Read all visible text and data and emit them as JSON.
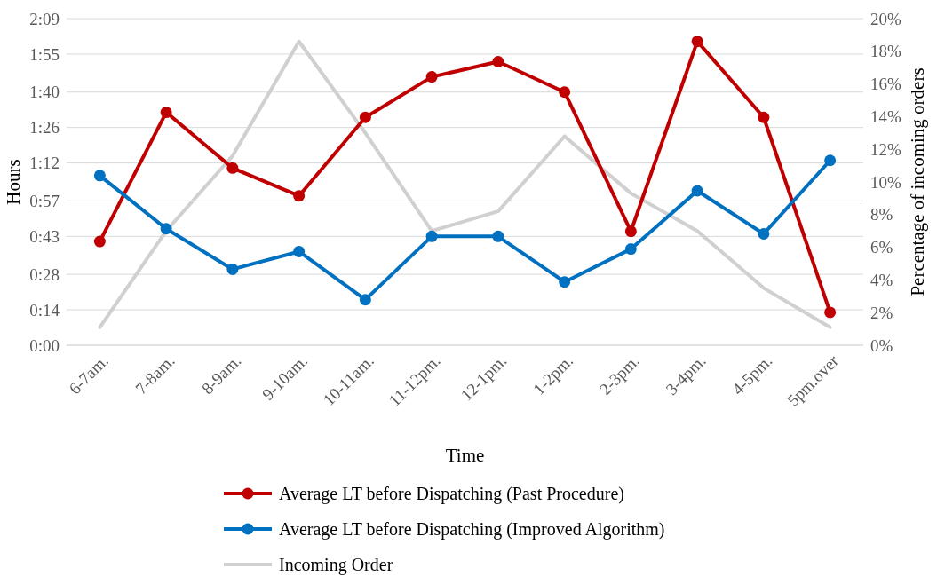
{
  "chart_data": {
    "type": "line",
    "xlabel": "Time",
    "ylabel": "Hours",
    "y2label": "Percentage of incoming orders",
    "categories": [
      "6-7am.",
      "7-8am.",
      "8-9am.",
      "9-10am.",
      "10-11am.",
      "11-12pm.",
      "12-1pm.",
      "1-2pm.",
      "2-3pm.",
      "3-4pm.",
      "4-5pm.",
      "5pm.over"
    ],
    "series": [
      {
        "name": "Average LT before Dispatching (Past Procedure)",
        "color": "#c00000",
        "marker": "circle",
        "values": [
          41,
          92,
          70,
          59,
          90,
          106,
          112,
          100,
          45,
          120,
          90,
          13
        ]
      },
      {
        "name": "Average LT before Dispatching (Improved Algorithm)",
        "color": "#0070c0",
        "marker": "circle",
        "values": [
          67,
          46,
          30,
          37,
          18,
          43,
          43,
          25,
          38,
          61,
          44,
          73
        ]
      },
      {
        "name": "Incoming Order",
        "color": "#d0d0d0",
        "marker": "none",
        "axis": "y2",
        "values": [
          1.1,
          7.0,
          11.6,
          18.6,
          13.0,
          7.0,
          8.2,
          12.8,
          9.3,
          7.0,
          3.5,
          1.1
        ]
      }
    ],
    "ylim": [
      0,
      129
    ],
    "yticks": [
      {
        "value": 0,
        "label": "0:00"
      },
      {
        "value": 14,
        "label": "0:14"
      },
      {
        "value": 28,
        "label": "0:28"
      },
      {
        "value": 43,
        "label": "0:43"
      },
      {
        "value": 57,
        "label": "0:57"
      },
      {
        "value": 72,
        "label": "1:12"
      },
      {
        "value": 86,
        "label": "1:26"
      },
      {
        "value": 100,
        "label": "1:40"
      },
      {
        "value": 115,
        "label": "1:55"
      },
      {
        "value": 129,
        "label": "2:09"
      }
    ],
    "y2lim": [
      0,
      20
    ],
    "y2ticks": [
      {
        "value": 0,
        "label": "0%"
      },
      {
        "value": 2,
        "label": "2%"
      },
      {
        "value": 4,
        "label": "4%"
      },
      {
        "value": 6,
        "label": "6%"
      },
      {
        "value": 8,
        "label": "8%"
      },
      {
        "value": 10,
        "label": "10%"
      },
      {
        "value": 12,
        "label": "12%"
      },
      {
        "value": 14,
        "label": "14%"
      },
      {
        "value": 16,
        "label": "16%"
      },
      {
        "value": 18,
        "label": "18%"
      },
      {
        "value": 20,
        "label": "20%"
      }
    ],
    "grid": "y",
    "legend": "bottom"
  }
}
